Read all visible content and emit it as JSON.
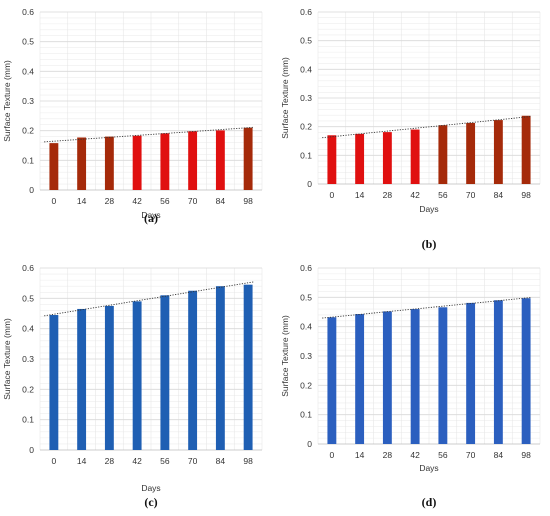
{
  "chart_data": [
    {
      "type": "bar",
      "panel_label": "(a)",
      "categories": [
        "0",
        "14",
        "28",
        "42",
        "56",
        "70",
        "84",
        "98"
      ],
      "values": [
        0.158,
        0.177,
        0.18,
        0.183,
        0.191,
        0.198,
        0.201,
        0.21
      ],
      "trendline": true,
      "xlabel": "Days",
      "ylabel": "Surface Texture (mm)",
      "ylim": [
        0,
        0.6
      ],
      "yticks": [
        "0",
        "0.1",
        "0.2",
        "0.3",
        "0.4",
        "0.5",
        "0.6"
      ],
      "grid": true,
      "bar_colors": [
        "#a52a0a",
        "#a52a0a",
        "#a52a0a",
        "#e01010",
        "#e01010",
        "#e01010",
        "#e01010",
        "#a52a0a"
      ]
    },
    {
      "type": "bar",
      "panel_label": "(b)",
      "categories": [
        "0",
        "14",
        "28",
        "42",
        "56",
        "70",
        "84",
        "98"
      ],
      "values": [
        0.17,
        0.175,
        0.181,
        0.19,
        0.205,
        0.213,
        0.223,
        0.238
      ],
      "trendline": true,
      "xlabel": "Days",
      "ylabel": "Surface Texture (mm)",
      "ylim": [
        0,
        0.6
      ],
      "yticks": [
        "0",
        "0.1",
        "0.2",
        "0.3",
        "0.4",
        "0.5",
        "0.6"
      ],
      "grid": true,
      "bar_colors": [
        "#e01010",
        "#e01010",
        "#e01010",
        "#e01010",
        "#a52a0a",
        "#a52a0a",
        "#a52a0a",
        "#a52a0a"
      ]
    },
    {
      "type": "bar",
      "panel_label": "(c)",
      "categories": [
        "0",
        "14",
        "28",
        "42",
        "56",
        "70",
        "84",
        "98"
      ],
      "values": [
        0.445,
        0.465,
        0.475,
        0.49,
        0.51,
        0.525,
        0.54,
        0.545
      ],
      "trendline": true,
      "xlabel": "Days",
      "ylabel": "Surface Texture (mm)",
      "ylim": [
        0,
        0.6
      ],
      "yticks": [
        "0",
        "0.1",
        "0.2",
        "0.3",
        "0.4",
        "0.5",
        "0.6"
      ],
      "grid": true,
      "bar_colors": [
        "#1f5fb3",
        "#1f5fb3",
        "#1f5fb3",
        "#1f5fb3",
        "#1f5fb3",
        "#1f5fb3",
        "#1f5fb3",
        "#1f5fb3"
      ]
    },
    {
      "type": "bar",
      "panel_label": "(d)",
      "categories": [
        "0",
        "14",
        "28",
        "42",
        "56",
        "70",
        "84",
        "98"
      ],
      "values": [
        0.432,
        0.443,
        0.452,
        0.46,
        0.466,
        0.481,
        0.49,
        0.497
      ],
      "trendline": true,
      "xlabel": "Days",
      "ylabel": "Surface Texture (mm)",
      "ylim": [
        0,
        0.6
      ],
      "yticks": [
        "0",
        "0.1",
        "0.2",
        "0.3",
        "0.4",
        "0.5",
        "0.6"
      ],
      "grid": true,
      "bar_colors": [
        "#2b5fbf",
        "#2b5fbf",
        "#2b5fbf",
        "#2b5fbf",
        "#2b5fbf",
        "#2b5fbf",
        "#2b5fbf",
        "#2b5fbf"
      ]
    }
  ]
}
